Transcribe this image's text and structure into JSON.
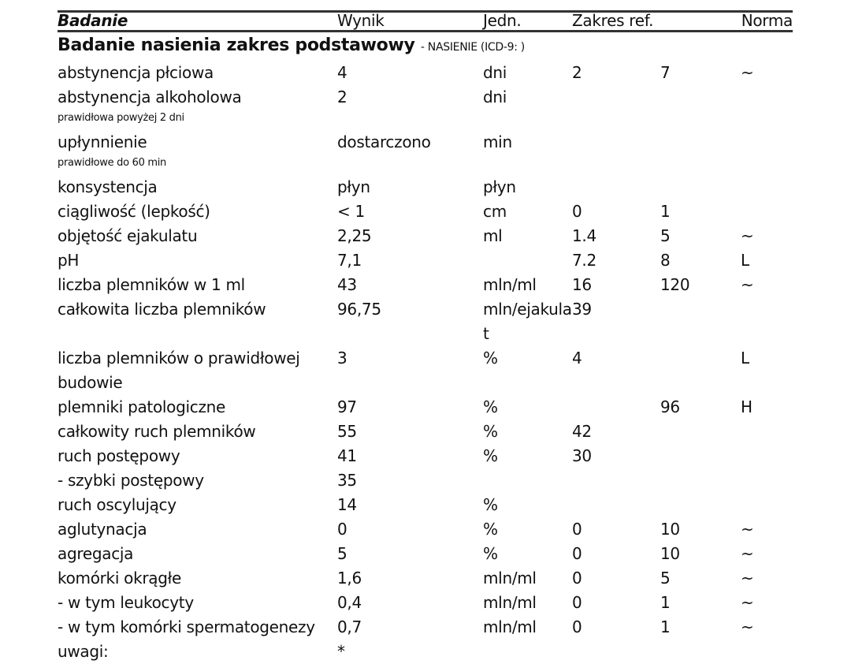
{
  "header": {
    "badanie": "Badanie",
    "wynik": "Wynik",
    "jedn": "Jedn.",
    "zakres": "Zakres ref.",
    "norma": "Norma"
  },
  "section": {
    "title": "Badanie nasienia zakres podstawowy",
    "subtitle": "- NASIENIE (ICD-9: )"
  },
  "rows": [
    {
      "name": "abstynencja płciowa",
      "wynik": "4",
      "jedn": "dni",
      "min": "2",
      "max": "7",
      "norma": "~"
    },
    {
      "name": "abstynencja alkoholowa",
      "wynik": "2",
      "jedn": "dni",
      "min": "",
      "max": "",
      "norma": "",
      "note": "prawidłowa powyżej 2 dni"
    },
    {
      "name": "upłynnienie",
      "wynik": "dostarczono",
      "jedn": "min",
      "min": "",
      "max": "",
      "norma": "",
      "note": "prawidłowe do 60 min"
    },
    {
      "name": "konsystencja",
      "wynik": "płyn",
      "jedn": "płyn",
      "min": "",
      "max": "",
      "norma": ""
    },
    {
      "name": "ciągliwość (lepkość)",
      "wynik": "< 1",
      "jedn": "cm",
      "min": "0",
      "max": "1",
      "norma": ""
    },
    {
      "name": "objętość ejakulatu",
      "wynik": "2,25",
      "jedn": "ml",
      "min": "1.4",
      "max": "5",
      "norma": "~"
    },
    {
      "name": "pH",
      "wynik": "7,1",
      "jedn": "",
      "min": "7.2",
      "max": "8",
      "norma": "L"
    },
    {
      "name": "liczba plemników w 1 ml",
      "wynik": "43",
      "jedn": "mln/ml",
      "min": "16",
      "max": "120",
      "norma": "~"
    },
    {
      "name": "całkowita liczba plemników",
      "wynik": "96,75",
      "jedn": "mln/ejakulat",
      "min": "39",
      "max": "",
      "norma": ""
    },
    {
      "name": "liczba plemników o prawidłowej budowie",
      "wynik": "3",
      "jedn": "%",
      "min": "4",
      "max": "",
      "norma": "L"
    },
    {
      "name": "plemniki patologiczne",
      "wynik": "97",
      "jedn": "%",
      "min": "",
      "max": "96",
      "norma": "H"
    },
    {
      "name": "całkowity ruch plemników",
      "wynik": "55",
      "jedn": "%",
      "min": "42",
      "max": "",
      "norma": ""
    },
    {
      "name": "ruch postępowy",
      "wynik": "41",
      "jedn": "%",
      "min": "30",
      "max": "",
      "norma": ""
    },
    {
      "name": "- szybki postępowy",
      "wynik": "35",
      "jedn": "",
      "min": "",
      "max": "",
      "norma": ""
    },
    {
      "name": "ruch oscylujący",
      "wynik": "14",
      "jedn": "%",
      "min": "",
      "max": "",
      "norma": ""
    },
    {
      "name": "aglutynacja",
      "wynik": "0",
      "jedn": "%",
      "min": "0",
      "max": "10",
      "norma": "~"
    },
    {
      "name": "agregacja",
      "wynik": "5",
      "jedn": "%",
      "min": "0",
      "max": "10",
      "norma": "~"
    },
    {
      "name": "komórki okrągłe",
      "wynik": "1,6",
      "jedn": "mln/ml",
      "min": "0",
      "max": "5",
      "norma": "~"
    },
    {
      "name": "- w tym leukocyty",
      "wynik": "0,4",
      "jedn": "mln/ml",
      "min": "0",
      "max": "1",
      "norma": "~"
    },
    {
      "name": "- w tym komórki spermatogenezy",
      "wynik": "0,7",
      "jedn": "mln/ml",
      "min": "0",
      "max": "1",
      "norma": "~"
    },
    {
      "name": "uwagi:",
      "wynik": "*",
      "jedn": "",
      "min": "",
      "max": "",
      "norma": ""
    }
  ]
}
